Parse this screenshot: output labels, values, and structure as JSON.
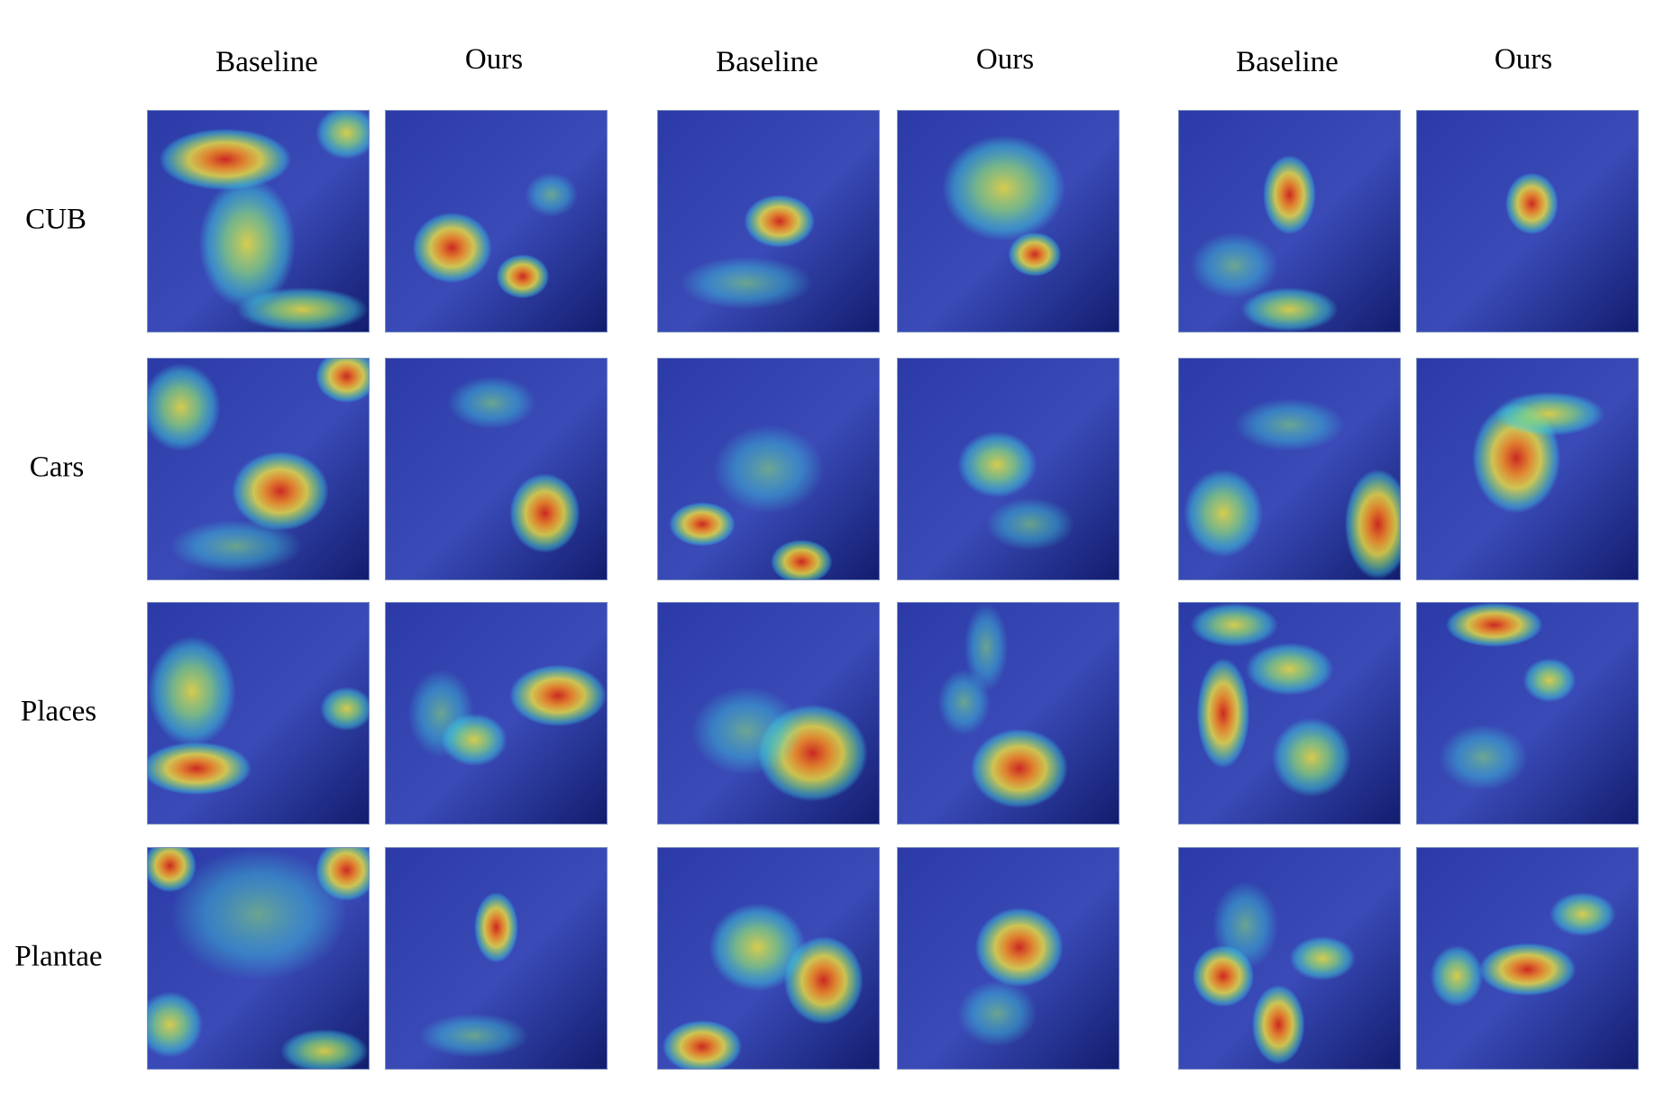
{
  "column_headers": [
    "Baseline",
    "Ours",
    "Baseline",
    "Ours",
    "Baseline",
    "Ours"
  ],
  "row_labels": [
    "CUB",
    "Cars",
    "Places",
    "Plantae"
  ],
  "palette": {
    "base_blue": "#2b3aa6",
    "deep_blue": "#131d6e",
    "cyan": "#3fd6e0",
    "green": "#8fe37a",
    "yellow": "#f3e33c",
    "orange": "#f28a22",
    "red": "#d3271a"
  }
}
